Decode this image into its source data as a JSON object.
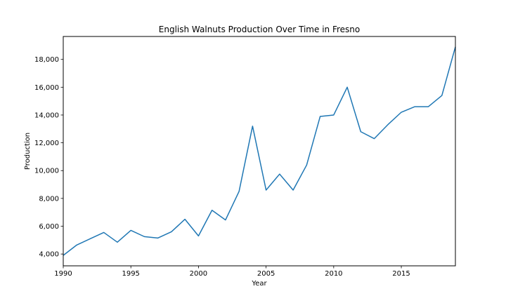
{
  "chart_data": {
    "type": "line",
    "title": "English Walnuts Production Over Time in Fresno",
    "xlabel": "Year",
    "ylabel": "Production",
    "xlim": [
      1990,
      2019
    ],
    "ylim": [
      3150,
      19650
    ],
    "x_ticks": [
      1990,
      1995,
      2000,
      2005,
      2010,
      2015
    ],
    "x_tick_labels": [
      "1990",
      "1995",
      "2000",
      "2005",
      "2010",
      "2015"
    ],
    "y_ticks": [
      4000,
      6000,
      8000,
      10000,
      12000,
      14000,
      16000,
      18000
    ],
    "y_tick_labels": [
      "4,000",
      "6,000",
      "8,000",
      "10,000",
      "12,000",
      "14,000",
      "16,000",
      "18,000"
    ],
    "grid": false,
    "series": [
      {
        "color": "#1f77b4",
        "x": [
          1990,
          1991,
          1992,
          1993,
          1994,
          1995,
          1996,
          1997,
          1998,
          1999,
          2000,
          2001,
          2002,
          2003,
          2004,
          2005,
          2006,
          2007,
          2008,
          2009,
          2010,
          2011,
          2012,
          2013,
          2014,
          2015,
          2016,
          2017,
          2018,
          2019
        ],
        "y": [
          3900,
          4650,
          5100,
          5550,
          4850,
          5700,
          5250,
          5150,
          5600,
          6500,
          5300,
          7150,
          6450,
          8500,
          13200,
          8600,
          9750,
          8600,
          10400,
          13900,
          14000,
          16000,
          12800,
          12300,
          13300,
          14200,
          14600,
          14600,
          15400,
          18900
        ]
      }
    ]
  }
}
